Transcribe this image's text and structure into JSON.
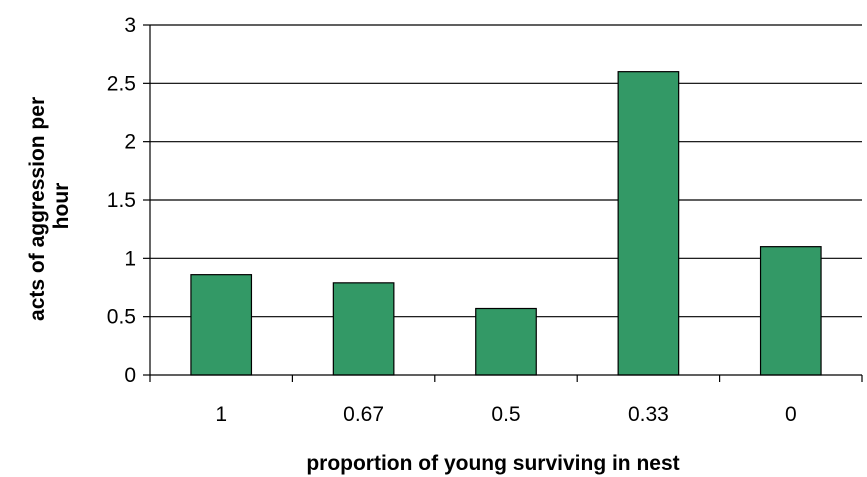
{
  "chart_data": {
    "type": "bar",
    "categories": [
      "1",
      "0.67",
      "0.5",
      "0.33",
      "0"
    ],
    "values": [
      0.86,
      0.79,
      0.57,
      2.6,
      1.1
    ],
    "xlabel": "proportion of young surviving in nest",
    "ylabel_lines": [
      "acts of aggression per",
      "hour"
    ],
    "ylim": [
      0,
      3
    ],
    "yticks": [
      "0",
      "0.5",
      "1",
      "1.5",
      "2",
      "2.5",
      "3"
    ],
    "grid": true,
    "legend": "none",
    "bar_color": "#339966",
    "bar_edge_color": "#000000",
    "grid_color": "#000000"
  }
}
